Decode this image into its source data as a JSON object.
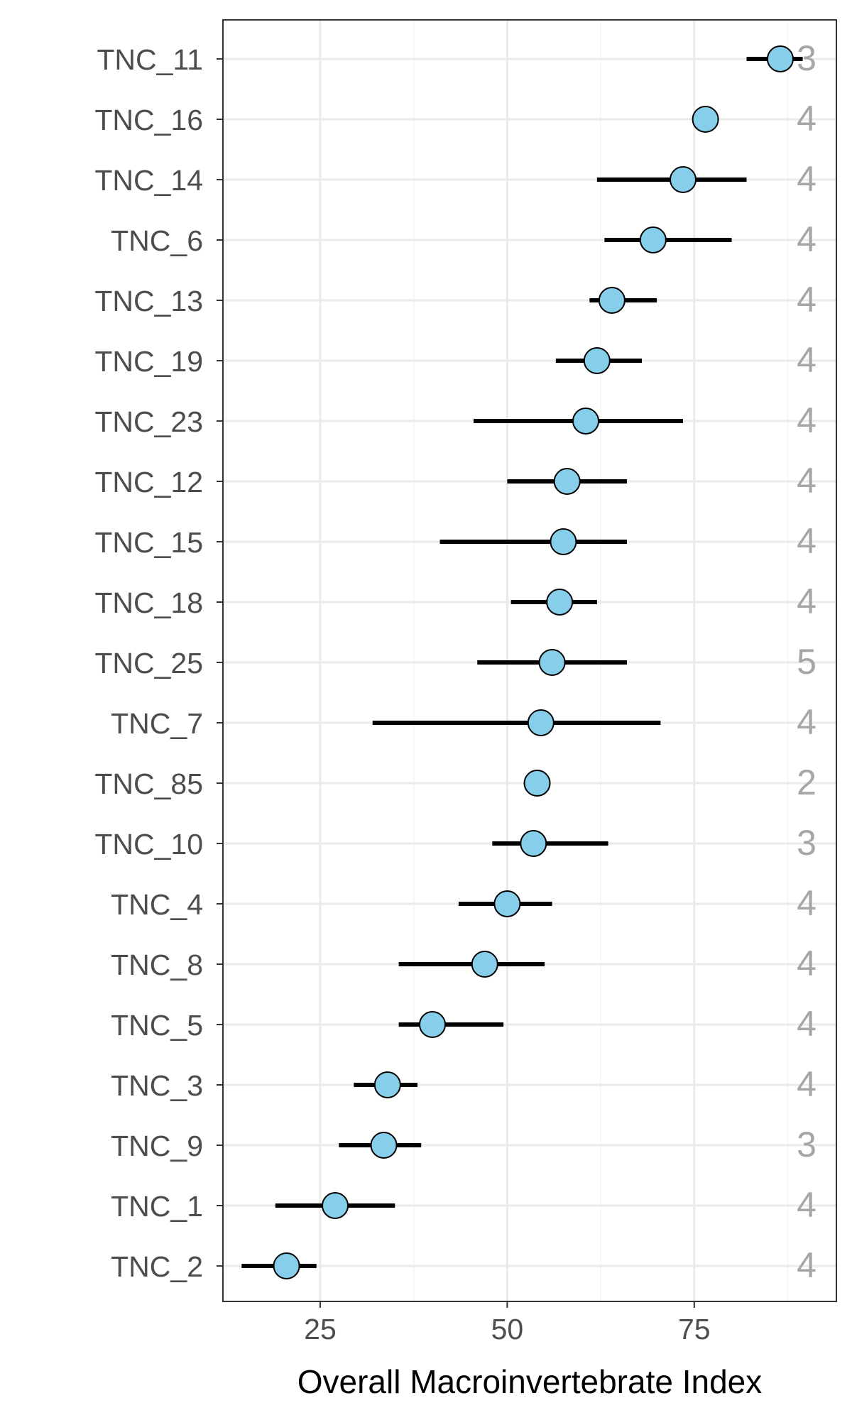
{
  "chart_data": {
    "type": "scatter",
    "xlabel": "Overall Macroinvertebrate Index",
    "ylabel": "",
    "title": "",
    "xlim": [
      12,
      94
    ],
    "x_ticks": [
      25,
      50,
      75
    ],
    "x_tick_labels": [
      "25",
      "50",
      "75"
    ],
    "grid": true,
    "legend": "none",
    "colors": {
      "point_fill": "#87ceeb",
      "point_stroke": "#000000",
      "error_bar": "#000000",
      "count_text": "#a6a6a6",
      "axis_text": "#4d4d4d",
      "grid_major": "#ebebeb",
      "grid_minor": "#f5f5f5",
      "panel_border": "#333333"
    },
    "categories": [
      "TNC_11",
      "TNC_16",
      "TNC_14",
      "TNC_6",
      "TNC_13",
      "TNC_19",
      "TNC_23",
      "TNC_12",
      "TNC_15",
      "TNC_18",
      "TNC_25",
      "TNC_7",
      "TNC_85",
      "TNC_10",
      "TNC_4",
      "TNC_8",
      "TNC_5",
      "TNC_3",
      "TNC_9",
      "TNC_1",
      "TNC_2"
    ],
    "points": [
      {
        "label": "TNC_11",
        "mean": 86.5,
        "low": 82.0,
        "high": 89.5,
        "n": "3"
      },
      {
        "label": "TNC_16",
        "mean": 76.5,
        "low": 76.5,
        "high": 76.5,
        "n": "4"
      },
      {
        "label": "TNC_14",
        "mean": 73.5,
        "low": 62.0,
        "high": 82.0,
        "n": "4"
      },
      {
        "label": "TNC_6",
        "mean": 69.5,
        "low": 63.0,
        "high": 80.0,
        "n": "4"
      },
      {
        "label": "TNC_13",
        "mean": 64.0,
        "low": 61.0,
        "high": 70.0,
        "n": "4"
      },
      {
        "label": "TNC_19",
        "mean": 62.0,
        "low": 56.5,
        "high": 68.0,
        "n": "4"
      },
      {
        "label": "TNC_23",
        "mean": 60.5,
        "low": 45.5,
        "high": 73.5,
        "n": "4"
      },
      {
        "label": "TNC_12",
        "mean": 58.0,
        "low": 50.0,
        "high": 66.0,
        "n": "4"
      },
      {
        "label": "TNC_15",
        "mean": 57.5,
        "low": 41.0,
        "high": 66.0,
        "n": "4"
      },
      {
        "label": "TNC_18",
        "mean": 57.0,
        "low": 50.5,
        "high": 62.0,
        "n": "4"
      },
      {
        "label": "TNC_25",
        "mean": 56.0,
        "low": 46.0,
        "high": 66.0,
        "n": "5"
      },
      {
        "label": "TNC_7",
        "mean": 54.5,
        "low": 32.0,
        "high": 70.5,
        "n": "4"
      },
      {
        "label": "TNC_85",
        "mean": 54.0,
        "low": 54.0,
        "high": 54.0,
        "n": "2"
      },
      {
        "label": "TNC_10",
        "mean": 53.5,
        "low": 48.0,
        "high": 63.5,
        "n": "3"
      },
      {
        "label": "TNC_4",
        "mean": 50.0,
        "low": 43.5,
        "high": 56.0,
        "n": "4"
      },
      {
        "label": "TNC_8",
        "mean": 47.0,
        "low": 35.5,
        "high": 55.0,
        "n": "4"
      },
      {
        "label": "TNC_5",
        "mean": 40.0,
        "low": 35.5,
        "high": 49.5,
        "n": "4"
      },
      {
        "label": "TNC_3",
        "mean": 34.0,
        "low": 29.5,
        "high": 38.0,
        "n": "4"
      },
      {
        "label": "TNC_9",
        "mean": 33.5,
        "low": 27.5,
        "high": 38.5,
        "n": "3"
      },
      {
        "label": "TNC_1",
        "mean": 27.0,
        "low": 19.0,
        "high": 35.0,
        "n": "4"
      },
      {
        "label": "TNC_2",
        "mean": 20.5,
        "low": 14.5,
        "high": 24.5,
        "n": "4"
      }
    ]
  }
}
